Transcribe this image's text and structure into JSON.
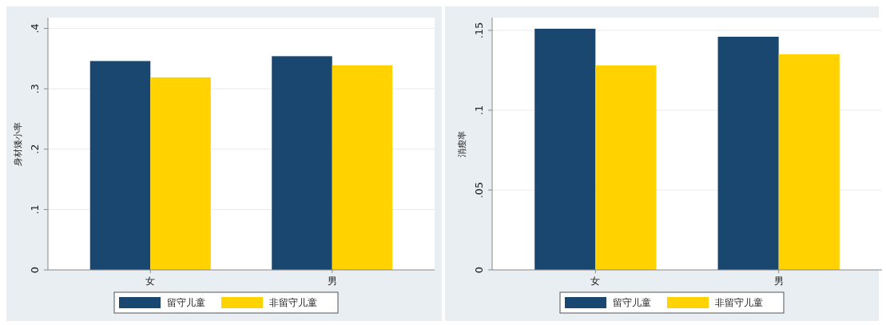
{
  "chart_data": [
    {
      "type": "bar",
      "ylabel": "身材矮小率",
      "categories": [
        "女",
        "男"
      ],
      "series": [
        {
          "name": "留守儿童",
          "color": "#1a476f",
          "values": [
            0.346,
            0.354
          ]
        },
        {
          "name": "非留守儿童",
          "color": "#ffd200",
          "values": [
            0.319,
            0.339
          ]
        }
      ],
      "ylim": [
        0,
        0.418
      ],
      "yticks": [
        0,
        {
          "value": 0.1,
          "label": ".1"
        },
        {
          "value": 0.2,
          "label": ".2"
        },
        {
          "value": 0.3,
          "label": ".3"
        },
        {
          "value": 0.4,
          "label": ".4"
        }
      ],
      "grid": "y",
      "legend": "bottom"
    },
    {
      "type": "bar",
      "ylabel": "消瘦率",
      "categories": [
        "女",
        "男"
      ],
      "series": [
        {
          "name": "留守儿童",
          "color": "#1a476f",
          "values": [
            0.151,
            0.146
          ]
        },
        {
          "name": "非留守儿童",
          "color": "#ffd200",
          "values": [
            0.128,
            0.135
          ]
        }
      ],
      "ylim": [
        0,
        0.158
      ],
      "yticks": [
        0,
        {
          "value": 0.05,
          "label": ".05"
        },
        {
          "value": 0.1,
          "label": ".1"
        },
        {
          "value": 0.15,
          "label": ".15"
        }
      ],
      "grid": "y",
      "legend": "bottom"
    }
  ]
}
